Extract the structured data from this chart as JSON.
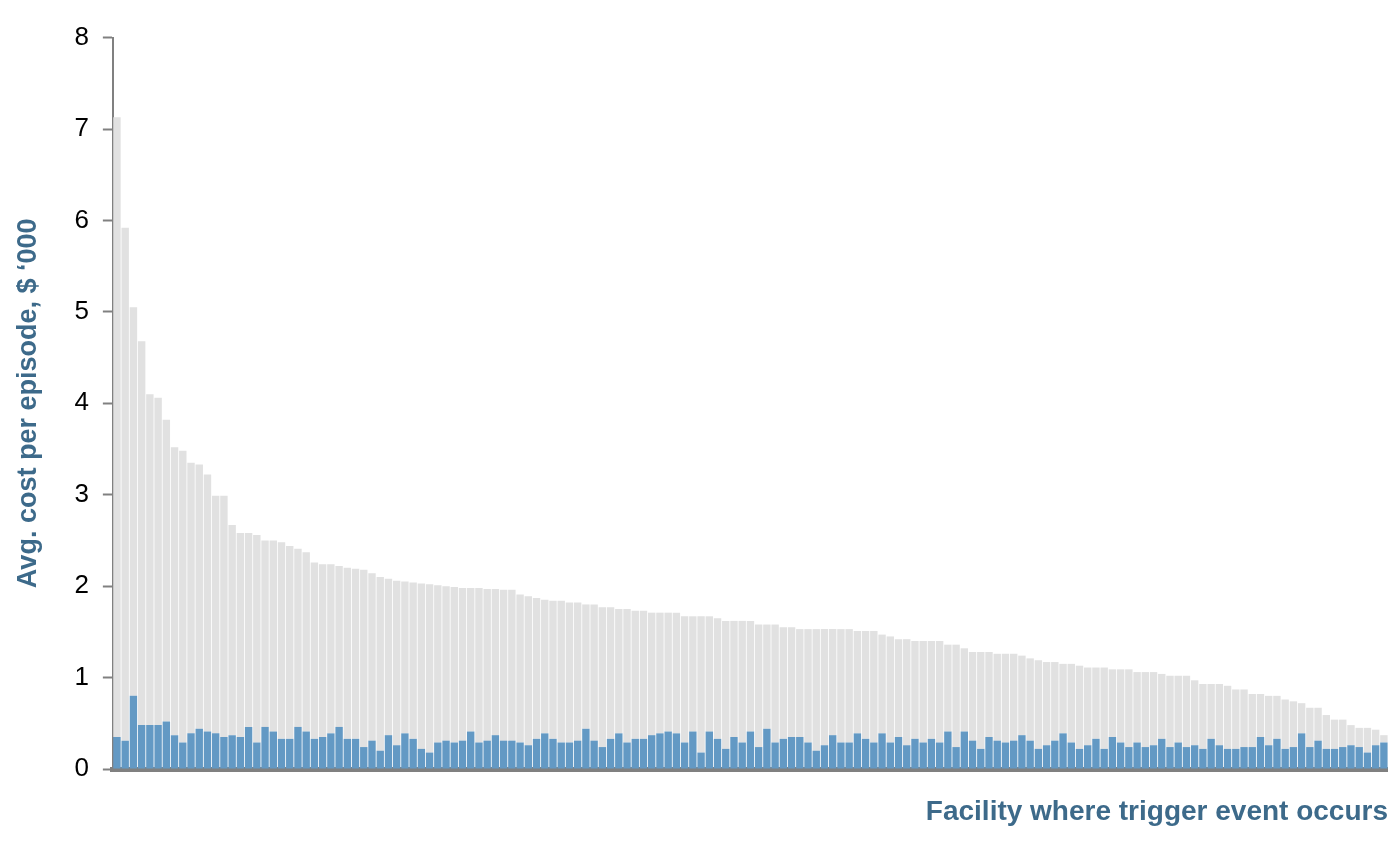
{
  "chart_data": {
    "type": "bar",
    "xlabel": "Facility where trigger event occurs",
    "ylabel": "Avg. cost per episode, $ ‘000",
    "categories": [
      null,
      null,
      null,
      null,
      null,
      null,
      null,
      null,
      null,
      null,
      null,
      null,
      null,
      null,
      null,
      null,
      null,
      null,
      null,
      null,
      null,
      null,
      null,
      null,
      null,
      null,
      null,
      null,
      null,
      null,
      null,
      null,
      null,
      null,
      null,
      null,
      null,
      null,
      null,
      null,
      null,
      null,
      null,
      null,
      null,
      null,
      null,
      null,
      null,
      null,
      null,
      null,
      null,
      null,
      null,
      null,
      null,
      null,
      null,
      null,
      null,
      null,
      null,
      null,
      null,
      null,
      null,
      null,
      null,
      null,
      null,
      null,
      null,
      null,
      null,
      null,
      null,
      null,
      null,
      null,
      null,
      null,
      null,
      null,
      null,
      null,
      null,
      null,
      null,
      null,
      null,
      null,
      null,
      null,
      null,
      null,
      null,
      null,
      null,
      null,
      null,
      null,
      null,
      null,
      null,
      null,
      null,
      null,
      null,
      null,
      null,
      null,
      null,
      null,
      null,
      null,
      null,
      null,
      null,
      null,
      null,
      null,
      null,
      null,
      null,
      null,
      null,
      null,
      null,
      null,
      null,
      null,
      null,
      null,
      null,
      null,
      null,
      null,
      null,
      null,
      null,
      null,
      null,
      null,
      null,
      null,
      null,
      null,
      null,
      null,
      null,
      null,
      null,
      null,
      null
    ],
    "series": [
      {
        "color": "#6399c4",
        "values": [
          0.35,
          0.31,
          0.8,
          0.48,
          0.48,
          0.48,
          0.52,
          0.37,
          0.29,
          0.39,
          0.44,
          0.41,
          0.39,
          0.35,
          0.37,
          0.35,
          0.46,
          0.29,
          0.46,
          0.41,
          0.33,
          0.33,
          0.46,
          0.41,
          0.33,
          0.35,
          0.39,
          0.46,
          0.33,
          0.33,
          0.24,
          0.31,
          0.2,
          0.37,
          0.26,
          0.39,
          0.33,
          0.22,
          0.18,
          0.29,
          0.31,
          0.29,
          0.31,
          0.41,
          0.29,
          0.31,
          0.37,
          0.31,
          0.31,
          0.29,
          0.26,
          0.33,
          0.39,
          0.33,
          0.29,
          0.29,
          0.31,
          0.44,
          0.31,
          0.24,
          0.33,
          0.39,
          0.29,
          0.33,
          0.33,
          0.37,
          0.39,
          0.41,
          0.39,
          0.29,
          0.41,
          0.18,
          0.41,
          0.33,
          0.22,
          0.35,
          0.29,
          0.41,
          0.24,
          0.44,
          0.29,
          0.33,
          0.35,
          0.35,
          0.29,
          0.2,
          0.26,
          0.37,
          0.29,
          0.29,
          0.39,
          0.33,
          0.29,
          0.39,
          0.29,
          0.35,
          0.26,
          0.33,
          0.29,
          0.33,
          0.29,
          0.41,
          0.24,
          0.41,
          0.31,
          0.22,
          0.35,
          0.31,
          0.29,
          0.31,
          0.37,
          0.31,
          0.22,
          0.26,
          0.31,
          0.39,
          0.29,
          0.22,
          0.26,
          0.33,
          0.22,
          0.35,
          0.29,
          0.24,
          0.29,
          0.24,
          0.26,
          0.33,
          0.24,
          0.29,
          0.24,
          0.26,
          0.22,
          0.33,
          0.26,
          0.22,
          0.22,
          0.24,
          0.24,
          0.35,
          0.26,
          0.33,
          0.22,
          0.24,
          0.39,
          0.24,
          0.31,
          0.22,
          0.22,
          0.24,
          0.26,
          0.24,
          0.18,
          0.26,
          0.29
        ]
      },
      {
        "color": "#e1e1e1",
        "values": [
          6.78,
          5.61,
          4.25,
          4.2,
          3.62,
          3.58,
          3.3,
          3.15,
          3.19,
          2.96,
          2.89,
          2.81,
          2.6,
          2.64,
          2.3,
          2.23,
          2.12,
          2.27,
          2.04,
          2.09,
          2.15,
          2.11,
          1.95,
          1.96,
          1.93,
          1.89,
          1.85,
          1.76,
          1.87,
          1.86,
          1.94,
          1.83,
          1.9,
          1.71,
          1.8,
          1.66,
          1.71,
          1.81,
          1.84,
          1.72,
          1.69,
          1.7,
          1.67,
          1.57,
          1.69,
          1.66,
          1.6,
          1.65,
          1.65,
          1.62,
          1.63,
          1.54,
          1.46,
          1.51,
          1.55,
          1.53,
          1.51,
          1.36,
          1.49,
          1.53,
          1.44,
          1.36,
          1.46,
          1.4,
          1.4,
          1.34,
          1.32,
          1.3,
          1.32,
          1.38,
          1.26,
          1.49,
          1.26,
          1.32,
          1.4,
          1.27,
          1.33,
          1.21,
          1.34,
          1.14,
          1.29,
          1.22,
          1.2,
          1.18,
          1.24,
          1.33,
          1.27,
          1.16,
          1.24,
          1.24,
          1.12,
          1.18,
          1.22,
          1.08,
          1.16,
          1.07,
          1.16,
          1.07,
          1.11,
          1.07,
          1.11,
          0.95,
          1.12,
          0.91,
          0.97,
          1.06,
          0.93,
          0.95,
          0.97,
          0.95,
          0.87,
          0.9,
          0.97,
          0.91,
          0.86,
          0.76,
          0.86,
          0.91,
          0.85,
          0.78,
          0.89,
          0.74,
          0.8,
          0.85,
          0.77,
          0.82,
          0.8,
          0.71,
          0.78,
          0.73,
          0.78,
          0.71,
          0.71,
          0.6,
          0.67,
          0.69,
          0.65,
          0.63,
          0.58,
          0.47,
          0.54,
          0.47,
          0.54,
          0.5,
          0.33,
          0.43,
          0.36,
          0.37,
          0.32,
          0.3,
          0.22,
          0.21,
          0.27,
          0.17,
          0.08
        ]
      }
    ],
    "stacked": true,
    "ylim": [
      0,
      8
    ],
    "yticks": [
      0,
      1,
      2,
      3,
      4,
      5,
      6,
      7,
      8
    ],
    "grid": false,
    "legend": false
  }
}
